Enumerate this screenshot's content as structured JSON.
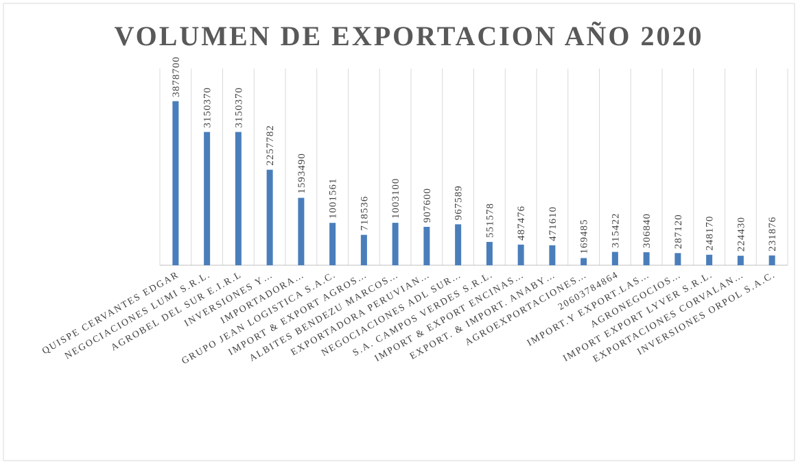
{
  "chart_data": {
    "type": "bar",
    "title": "VOLUMEN DE EXPORTACION AÑO 2020",
    "categories": [
      "QUISPE CERVANTES EDGAR",
      "NEGOCIACIONES LUMI S.R.L.",
      "AGROBEL DEL SUR E.I.R.L",
      "INVERSIONES Y…",
      "IMPORTADORA…",
      "GRUPO JEAN LOGISTICA S.A.C.",
      "IMPORT & EXPORT AGROS…",
      "ALBITES BENDEZU MARCOS…",
      "EXPORTADORA PERUVIAN…",
      "NEGOCIACIONES ADL SUR…",
      "S.A. CAMPOS VERDES S.R.L.",
      "IMPORT & EXPORT ENCINAS…",
      "EXPORT. & IMPORT. ANABY…",
      "AGROEXPORTACIONES…",
      "20603784864",
      "IMPORT.Y EXPORT.LAS…",
      "AGRONEGOCIOS…",
      "IMPORT EXPORT LYVER S.R.L.",
      "EXPORTACIONES CORVALAN…",
      "INVERSIONES ORPOL S.A.C."
    ],
    "values": [
      3878700,
      3150370,
      3150370,
      2257782,
      1593490,
      1001561,
      718536,
      1003100,
      907600,
      967589,
      551578,
      487476,
      471610,
      169485,
      315422,
      306840,
      287120,
      248170,
      224430,
      231876
    ],
    "color": "#4a7ebb",
    "ylim": [
      0,
      4650000
    ],
    "grid": true
  }
}
